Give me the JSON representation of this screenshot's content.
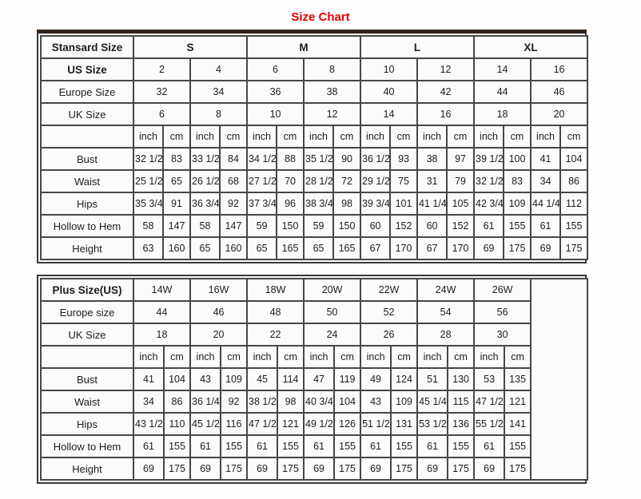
{
  "title": "Size Chart",
  "colors": {
    "title": "#e60000",
    "frame": "#383838",
    "grid": "#474747",
    "top_bar": "#30211a",
    "cell_bg": "#fbfbf9",
    "page_bg": "#fdfdfd"
  },
  "standard_table": {
    "header_label": "Stansard Size",
    "size_groups": [
      "S",
      "M",
      "L",
      "XL"
    ],
    "us_label": "US Size",
    "us_sizes": [
      "2",
      "4",
      "6",
      "8",
      "10",
      "12",
      "14",
      "16"
    ],
    "europe_label": "Europe Size",
    "europe_sizes": [
      "32",
      "34",
      "36",
      "38",
      "40",
      "42",
      "44",
      "46"
    ],
    "uk_label": "UK Size",
    "uk_sizes": [
      "6",
      "8",
      "10",
      "12",
      "14",
      "16",
      "18",
      "20"
    ],
    "unit_labels": [
      "inch",
      "cm"
    ],
    "measurements": [
      {
        "label": "Bust",
        "values": [
          "32 1/2",
          "83",
          "33 1/2",
          "84",
          "34 1/2",
          "88",
          "35 1/2",
          "90",
          "36 1/2",
          "93",
          "38",
          "97",
          "39 1/2",
          "100",
          "41",
          "104"
        ]
      },
      {
        "label": "Waist",
        "values": [
          "25 1/2",
          "65",
          "26 1/2",
          "68",
          "27 1/2",
          "70",
          "28 1/2",
          "72",
          "29 1/2",
          "75",
          "31",
          "79",
          "32 1/2",
          "83",
          "34",
          "86"
        ]
      },
      {
        "label": "Hips",
        "values": [
          "35 3/4",
          "91",
          "36 3/4",
          "92",
          "37 3/4",
          "96",
          "38 3/4",
          "98",
          "39 3/4",
          "101",
          "41 1/4",
          "105",
          "42 3/4",
          "109",
          "44 1/4",
          "112"
        ]
      },
      {
        "label": "Hollow to Hem",
        "values": [
          "58",
          "147",
          "58",
          "147",
          "59",
          "150",
          "59",
          "150",
          "60",
          "152",
          "60",
          "152",
          "61",
          "155",
          "61",
          "155"
        ]
      },
      {
        "label": "Height",
        "values": [
          "63",
          "160",
          "65",
          "160",
          "65",
          "165",
          "65",
          "165",
          "67",
          "170",
          "67",
          "170",
          "69",
          "175",
          "69",
          "175"
        ]
      }
    ]
  },
  "plus_table": {
    "header_label": "Plus Size(US)",
    "plus_sizes": [
      "14W",
      "16W",
      "18W",
      "20W",
      "22W",
      "24W",
      "26W"
    ],
    "europe_label": "Europe size",
    "europe_sizes": [
      "44",
      "46",
      "48",
      "50",
      "52",
      "54",
      "56"
    ],
    "uk_label": "UK Size",
    "uk_sizes": [
      "18",
      "20",
      "22",
      "24",
      "26",
      "28",
      "30"
    ],
    "unit_labels": [
      "inch",
      "cm"
    ],
    "measurements": [
      {
        "label": "Bust",
        "values": [
          "41",
          "104",
          "43",
          "109",
          "45",
          "114",
          "47",
          "119",
          "49",
          "124",
          "51",
          "130",
          "53",
          "135"
        ]
      },
      {
        "label": "Waist",
        "values": [
          "34",
          "86",
          "36 1/4",
          "92",
          "38 1/2",
          "98",
          "40 3/4",
          "104",
          "43",
          "109",
          "45 1/4",
          "115",
          "47 1/2",
          "121"
        ]
      },
      {
        "label": "Hips",
        "values": [
          "43 1/2",
          "110",
          "45 1/2",
          "116",
          "47 1/2",
          "121",
          "49 1/2",
          "126",
          "51 1/2",
          "131",
          "53 1/2",
          "136",
          "55 1/2",
          "141"
        ]
      },
      {
        "label": "Hollow to Hem",
        "values": [
          "61",
          "155",
          "61",
          "155",
          "61",
          "155",
          "61",
          "155",
          "61",
          "155",
          "61",
          "155",
          "61",
          "155"
        ]
      },
      {
        "label": "Height",
        "values": [
          "69",
          "175",
          "69",
          "175",
          "69",
          "175",
          "69",
          "175",
          "69",
          "175",
          "69",
          "175",
          "69",
          "175"
        ]
      }
    ]
  }
}
